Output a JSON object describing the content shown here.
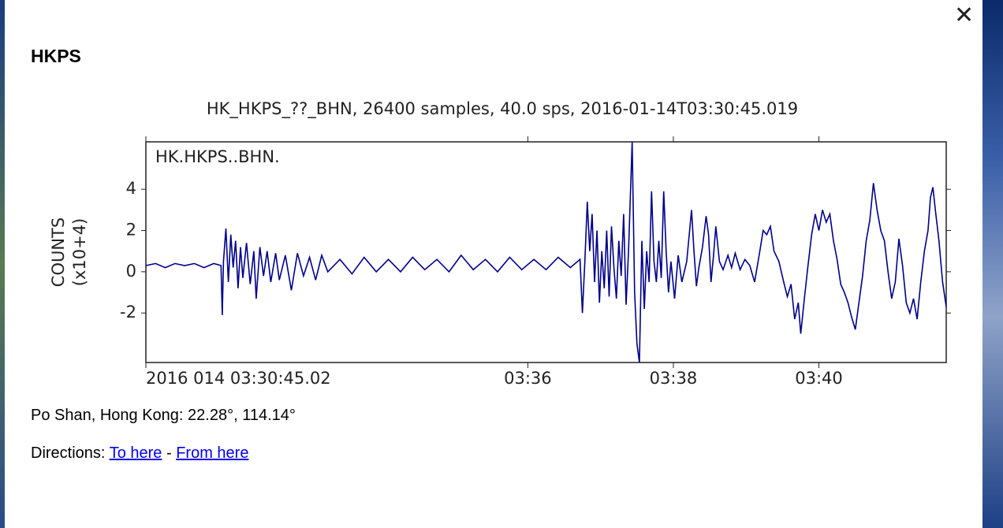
{
  "popup": {
    "title": "HKPS",
    "location": "Po Shan, Hong Kong: 22.28°, 114.14°",
    "directions_label": "Directions:",
    "to_here": "To here",
    "separator": "-",
    "from_here": "From here"
  },
  "chart_data": {
    "type": "line",
    "title": "HK_HKPS_??_BHN, 26400 samples, 40.0 sps, 2016-01-14T03:30:45.019",
    "annotation": "HK.HKPS..BHN.",
    "y_label": [
      "COUNTS",
      "(x10+4)"
    ],
    "xlim": [
      0,
      660
    ],
    "ylim": [
      -4.4,
      6.3
    ],
    "xticks": [
      {
        "value": 0,
        "label": "2016 014 03:30:45.02"
      },
      {
        "value": 314.98,
        "label": "03:36"
      },
      {
        "value": 434.98,
        "label": "03:38"
      },
      {
        "value": 554.98,
        "label": "03:40"
      }
    ],
    "yticks": [
      4,
      2,
      0,
      -2
    ],
    "series": [
      {
        "name": "HK.HKPS..BHN.",
        "color": "#00008b",
        "x": [
          0,
          8,
          16,
          24,
          32,
          40,
          48,
          56,
          62,
          63,
          64,
          66,
          68,
          70,
          72,
          74,
          76,
          78,
          80,
          83,
          86,
          89,
          91,
          94,
          97,
          100,
          103,
          107,
          110,
          115,
          120,
          125,
          130,
          135,
          140,
          145,
          150,
          160,
          170,
          180,
          190,
          200,
          210,
          220,
          230,
          240,
          250,
          260,
          270,
          280,
          290,
          300,
          310,
          320,
          330,
          340,
          350,
          358,
          360,
          362,
          364,
          366,
          368,
          370,
          372,
          374,
          376,
          378,
          380,
          382,
          384,
          386,
          388,
          390,
          392,
          394,
          396,
          398,
          401,
          403,
          405,
          407,
          409,
          411,
          413,
          415,
          417,
          419,
          421,
          423,
          425,
          427,
          429,
          431,
          433,
          436,
          439,
          442,
          446,
          450,
          452,
          454,
          456,
          459,
          462,
          464,
          466,
          468,
          470,
          473,
          476,
          480,
          483,
          486,
          490,
          494,
          498,
          502,
          506,
          509,
          512,
          515,
          518,
          522,
          526,
          529,
          532,
          535,
          538,
          540,
          543,
          546,
          549,
          552,
          555,
          558,
          561,
          564,
          567,
          570,
          573,
          576,
          579,
          582,
          585,
          588,
          591,
          594,
          597,
          600,
          603,
          606,
          609,
          612,
          615,
          618,
          621,
          624,
          627,
          630,
          633,
          636,
          639,
          642,
          645,
          647,
          649,
          651,
          654,
          657,
          660
        ],
        "values": [
          0.3,
          0.4,
          0.2,
          0.4,
          0.3,
          0.4,
          0.2,
          0.4,
          0.3,
          -2.1,
          0.5,
          2.1,
          -0.5,
          1.8,
          0.2,
          1.5,
          -0.8,
          1.2,
          -0.3,
          1.4,
          -0.6,
          1.0,
          -1.3,
          1.2,
          -0.2,
          1.0,
          -0.5,
          0.9,
          -0.4,
          0.8,
          -0.9,
          0.9,
          -0.2,
          0.7,
          -0.4,
          0.8,
          0,
          0.6,
          -0.1,
          0.7,
          0,
          0.6,
          0,
          0.7,
          0.1,
          0.6,
          0,
          0.8,
          0.1,
          0.6,
          0,
          0.7,
          0.1,
          0.6,
          0.1,
          0.7,
          0.2,
          0.6,
          -2.0,
          0.5,
          3.4,
          1.0,
          2.8,
          -0.5,
          2.0,
          -1.5,
          1.0,
          -0.8,
          2.0,
          -1.2,
          2.2,
          0.2,
          -1.3,
          1.5,
          -0.2,
          2.8,
          -1.6,
          1.0,
          6.3,
          -1.0,
          -3.5,
          -4.4,
          1.5,
          -1.8,
          1.0,
          -0.5,
          3.9,
          0.5,
          -0.5,
          1.5,
          -0.3,
          3.9,
          1.0,
          -1.0,
          0.5,
          -1.3,
          0.8,
          -0.5,
          0.5,
          3.0,
          1.0,
          -0.7,
          0.2,
          1.2,
          2.7,
          1.8,
          -0.5,
          0.7,
          2.2,
          0.5,
          0.1,
          0.8,
          0.2,
          0.9,
          0.1,
          0.6,
          0.3,
          -0.5,
          0.9,
          2.0,
          1.8,
          2.2,
          1.0,
          0.5,
          -0.5,
          -1.2,
          -0.6,
          -2.3,
          -1.5,
          -3.0,
          -1.3,
          0.3,
          1.8,
          2.8,
          2.0,
          3.0,
          2.4,
          2.8,
          1.5,
          0.6,
          -0.6,
          -1.0,
          -1.5,
          -2.2,
          -2.8,
          -1.5,
          -0.2,
          1.5,
          2.5,
          4.3,
          3.0,
          2.0,
          1.5,
          0,
          -1.3,
          -0.5,
          1.6,
          0.3,
          -1.5,
          -2.0,
          -1.3,
          -2.3,
          -0.5,
          1.0,
          2.0,
          3.6,
          4.1,
          3.0,
          1.5,
          -0.5,
          -1.7
        ]
      }
    ]
  }
}
